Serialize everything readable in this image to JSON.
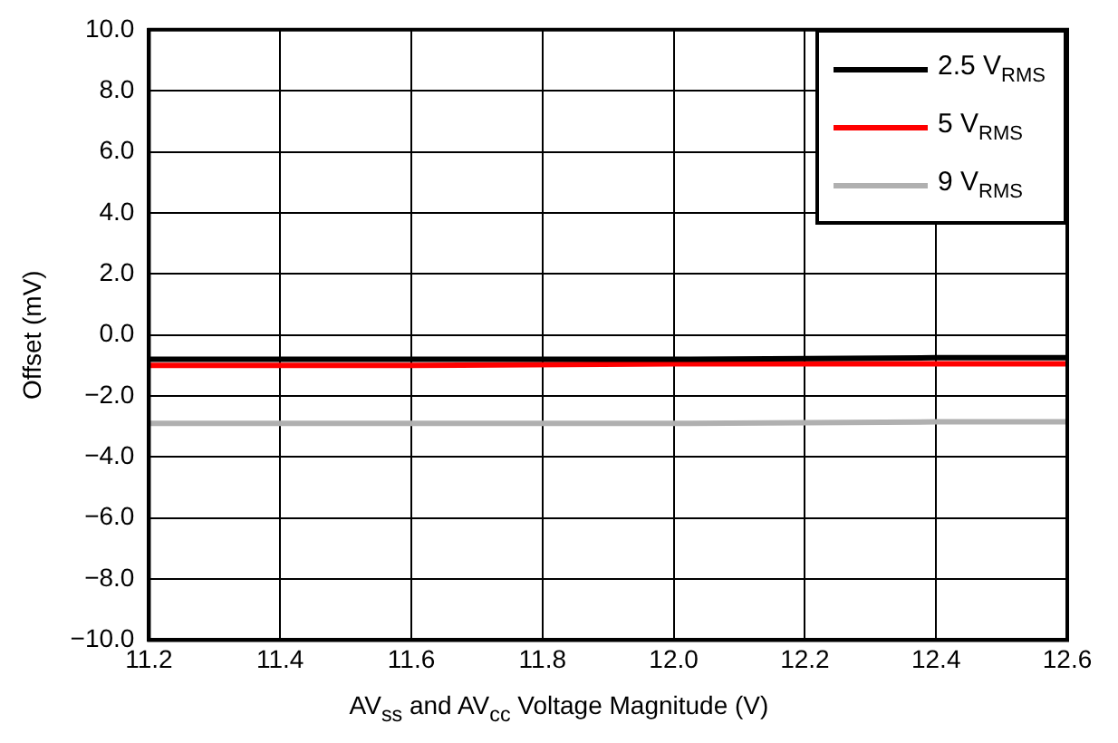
{
  "chart_data": {
    "type": "line",
    "xlabel": "AV$_{ss}$ and AV$_{cc}$ Voltage Magnitude (V)",
    "ylabel": "Offset (mV)",
    "x": [
      11.2,
      11.6,
      12.0,
      12.4,
      12.6
    ],
    "series": [
      {
        "name": "2.5 V$_{RMS}$",
        "color": "#000000",
        "values": [
          -0.8,
          -0.8,
          -0.8,
          -0.75,
          -0.75
        ]
      },
      {
        "name": "5 V$_{RMS}$",
        "color": "#ff0000",
        "values": [
          -1.0,
          -1.0,
          -0.95,
          -0.95,
          -0.95
        ]
      },
      {
        "name": "9 V$_{RMS}$",
        "color": "#b0b0b0",
        "values": [
          -2.9,
          -2.9,
          -2.9,
          -2.85,
          -2.85
        ]
      }
    ],
    "xlim": [
      11.2,
      12.6
    ],
    "xticks": [
      {
        "value": 11.2,
        "label": "11.2"
      },
      {
        "value": 11.4,
        "label": "11.4"
      },
      {
        "value": 11.6,
        "label": "11.6"
      },
      {
        "value": 11.8,
        "label": "11.8"
      },
      {
        "value": 12.0,
        "label": "12.0"
      },
      {
        "value": 12.2,
        "label": "12.2"
      },
      {
        "value": 12.4,
        "label": "12.4"
      },
      {
        "value": 12.6,
        "label": "12.6"
      }
    ],
    "ylim": [
      -10,
      10
    ],
    "yticks": [
      {
        "value": -10,
        "label": "−10.0"
      },
      {
        "value": -8,
        "label": "−8.0"
      },
      {
        "value": -6,
        "label": "−6.0"
      },
      {
        "value": -4,
        "label": "−4.0"
      },
      {
        "value": -2,
        "label": "−2.0"
      },
      {
        "value": 0,
        "label": "0.0"
      },
      {
        "value": 2,
        "label": "2.0"
      },
      {
        "value": 4,
        "label": "4.0"
      },
      {
        "value": 6,
        "label": "6.0"
      },
      {
        "value": 8,
        "label": "8.0"
      },
      {
        "value": 10,
        "label": "10.0"
      }
    ],
    "grid": true,
    "legend": "top right",
    "marker": "none",
    "line_style": "solid"
  }
}
